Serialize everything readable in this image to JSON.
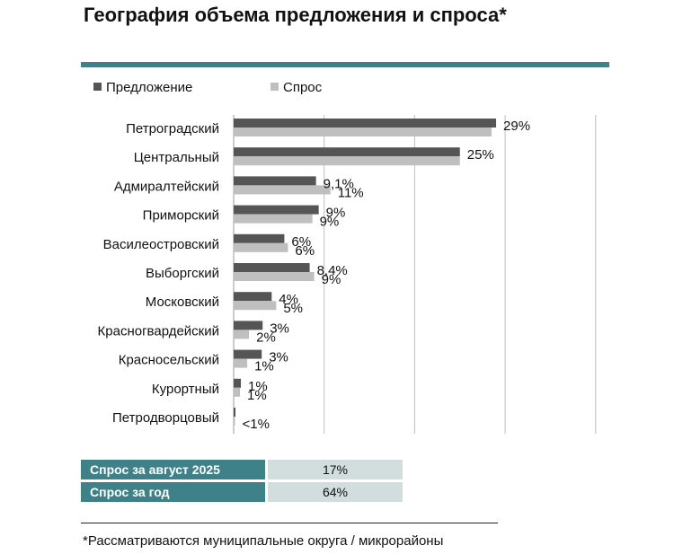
{
  "title": "География объема предложения и спроса*",
  "colors": {
    "accent": "#3f8188",
    "offer": "#555555",
    "demand": "#bfbfbf",
    "table_value_bg": "#d2dddd"
  },
  "chart_data": {
    "type": "bar",
    "orientation": "horizontal",
    "categories": [
      "Петроградский",
      "Центральный",
      "Адмиралтейский",
      "Приморский",
      "Василеостровский",
      "Выборгский",
      "Московский",
      "Красногвардейский",
      "Красносельский",
      "Курортный",
      "Петродворцовый"
    ],
    "series": [
      {
        "name": "Предложение",
        "color": "#555555",
        "values": [
          29,
          25,
          9.1,
          9.4,
          5.6,
          8.4,
          4.2,
          3.2,
          3.1,
          0.8,
          0.2
        ],
        "labels": [
          "29%",
          "25%",
          "9,1%",
          "9%",
          "6%",
          "8,4%",
          "4%",
          "3%",
          "3%",
          "1%",
          ""
        ]
      },
      {
        "name": "Спрос",
        "color": "#bfbfbf",
        "values": [
          28.5,
          25,
          10.7,
          8.7,
          6,
          8.9,
          4.7,
          1.7,
          1.5,
          0.7,
          0.1
        ],
        "labels": [
          "",
          "",
          "11%",
          "9%",
          "6%",
          "9%",
          "5%",
          "2%",
          "1%",
          "1%",
          "<1%"
        ]
      }
    ],
    "xlim": [
      0,
      40
    ],
    "grid": true,
    "legend": "top-left"
  },
  "summary": [
    {
      "label": "Спрос за август 2025",
      "value": "17%"
    },
    {
      "label": "Спрос за год",
      "value": "64%"
    }
  ],
  "footnote": "*Рассматриваются муниципальные округа / микрорайоны"
}
